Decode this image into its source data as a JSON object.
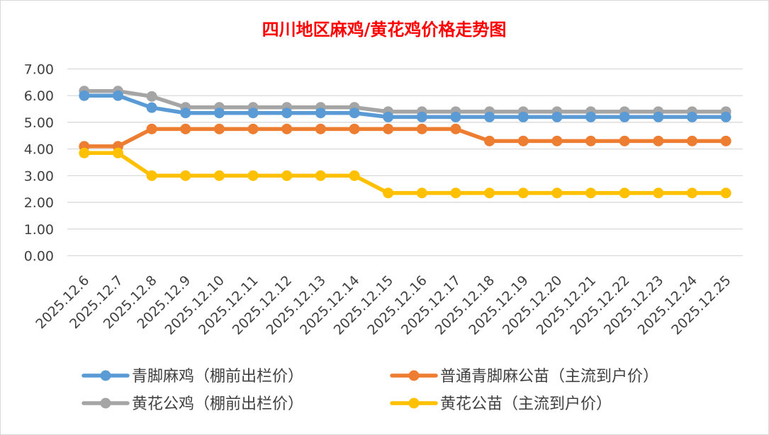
{
  "chart_data": {
    "type": "line",
    "title": "四川地区麻鸡/黄花鸡价格走势图",
    "title_color": "#ff0000",
    "categories": [
      "2025.12.6",
      "2025.12.7",
      "2025.12.8",
      "2025.12.9",
      "2025.12.10",
      "2025.12.11",
      "2025.12.12",
      "2025.12.13",
      "2025.12.14",
      "2025.12.15",
      "2025.12.16",
      "2025.12.17",
      "2025.12.18",
      "2025.12.19",
      "2025.12.20",
      "2025.12.21",
      "2025.12.22",
      "2025.12.23",
      "2025.12.24",
      "2025.12.25"
    ],
    "ylim": [
      0,
      7
    ],
    "yticks": [
      "0.00",
      "1.00",
      "2.00",
      "3.00",
      "4.00",
      "5.00",
      "6.00",
      "7.00"
    ],
    "grid": true,
    "legend_placement": "bottom",
    "series": [
      {
        "name": "青脚麻鸡（棚前出栏价）",
        "color": "#5b9bd5",
        "values": [
          6.0,
          6.0,
          5.55,
          5.35,
          5.35,
          5.35,
          5.35,
          5.35,
          5.35,
          5.2,
          5.2,
          5.2,
          5.2,
          5.2,
          5.2,
          5.2,
          5.2,
          5.2,
          5.2,
          5.2
        ]
      },
      {
        "name": "普通青脚麻公苗（主流到户价）",
        "color": "#ed7d31",
        "values": [
          4.1,
          4.1,
          4.75,
          4.75,
          4.75,
          4.75,
          4.75,
          4.75,
          4.75,
          4.75,
          4.75,
          4.75,
          4.3,
          4.3,
          4.3,
          4.3,
          4.3,
          4.3,
          4.3,
          4.3
        ]
      },
      {
        "name": "黄花公鸡（棚前出栏价）",
        "color": "#a5a5a5",
        "values": [
          6.17,
          6.17,
          5.97,
          5.56,
          5.56,
          5.56,
          5.56,
          5.56,
          5.56,
          5.4,
          5.4,
          5.4,
          5.4,
          5.4,
          5.4,
          5.4,
          5.4,
          5.4,
          5.4,
          5.4
        ]
      },
      {
        "name": "黄花公苗（主流到户价）",
        "color": "#ffc000",
        "values": [
          3.85,
          3.85,
          3.0,
          3.0,
          3.0,
          3.0,
          3.0,
          3.0,
          3.0,
          2.35,
          2.35,
          2.35,
          2.35,
          2.35,
          2.35,
          2.35,
          2.35,
          2.35,
          2.35,
          2.35
        ]
      }
    ]
  }
}
